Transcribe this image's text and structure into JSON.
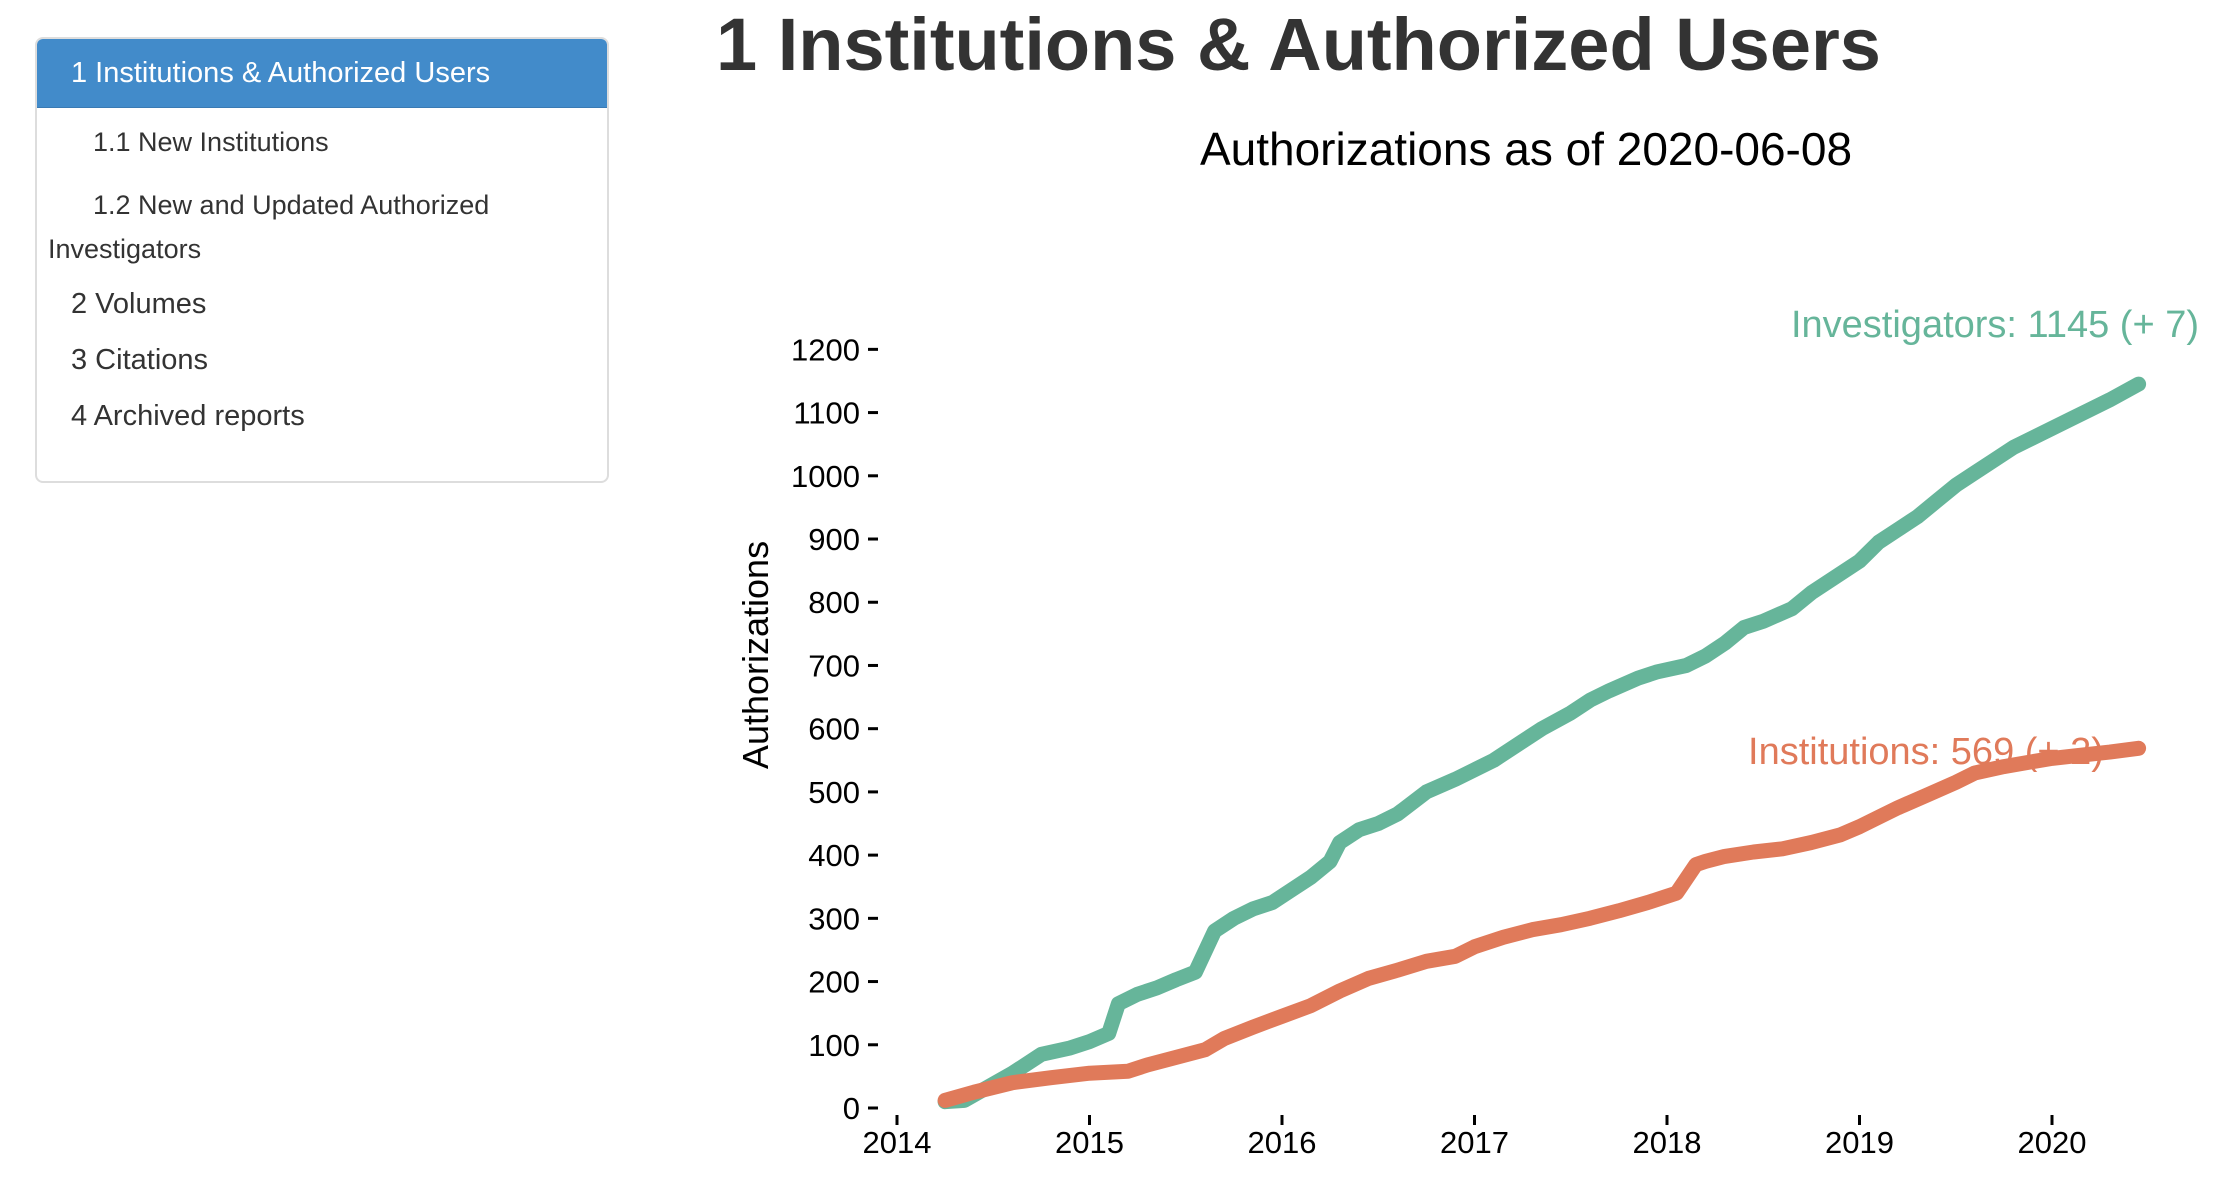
{
  "toc": {
    "items": [
      {
        "label": "1 Institutions & Authorized Users",
        "active": true
      },
      {
        "label": "1.1 New Institutions"
      },
      {
        "label": "1.2 New and Updated Authorized Investigators"
      },
      {
        "label": "2 Volumes"
      },
      {
        "label": "3 Citations"
      },
      {
        "label": "4 Archived reports"
      }
    ]
  },
  "page": {
    "title": "1 Institutions & Authorized Users"
  },
  "chart_data": {
    "type": "line",
    "title": "Authorizations as of  2020-06-08",
    "xlabel": "",
    "ylabel": "Authorizations",
    "xlim": [
      2014,
      2020.6
    ],
    "ylim": [
      0,
      1200
    ],
    "xticks": [
      2014,
      2015,
      2016,
      2017,
      2018,
      2019,
      2020
    ],
    "yticks": [
      0,
      100,
      200,
      300,
      400,
      500,
      600,
      700,
      800,
      900,
      1000,
      1100,
      1200
    ],
    "grid": false,
    "series": [
      {
        "name": "Investigators",
        "label": "Investigators: 1145 (+ 7)",
        "color": "#66b59a",
        "x": [
          2014.25,
          2014.35,
          2014.5,
          2014.6,
          2014.75,
          2014.9,
          2015.0,
          2015.1,
          2015.15,
          2015.25,
          2015.35,
          2015.45,
          2015.55,
          2015.65,
          2015.75,
          2015.85,
          2015.95,
          2016.05,
          2016.15,
          2016.25,
          2016.3,
          2016.4,
          2016.5,
          2016.6,
          2016.75,
          2016.9,
          2017.0,
          2017.1,
          2017.25,
          2017.35,
          2017.5,
          2017.6,
          2017.7,
          2017.85,
          2017.95,
          2018.1,
          2018.2,
          2018.3,
          2018.4,
          2018.5,
          2018.65,
          2018.75,
          2018.85,
          2019.0,
          2019.1,
          2019.2,
          2019.3,
          2019.4,
          2019.5,
          2019.6,
          2019.7,
          2019.8,
          2019.9,
          2020.0,
          2020.1,
          2020.2,
          2020.3,
          2020.45
        ],
        "values": [
          10,
          12,
          38,
          55,
          85,
          95,
          105,
          118,
          165,
          180,
          190,
          203,
          215,
          280,
          300,
          315,
          325,
          345,
          365,
          390,
          420,
          440,
          450,
          465,
          500,
          520,
          535,
          550,
          580,
          600,
          625,
          645,
          660,
          680,
          690,
          700,
          715,
          735,
          760,
          770,
          790,
          815,
          835,
          865,
          895,
          915,
          935,
          960,
          985,
          1005,
          1025,
          1045,
          1060,
          1075,
          1090,
          1105,
          1120,
          1145
        ]
      },
      {
        "name": "Institutions",
        "label": "Institutions: 569 (+ 2)",
        "color": "#e07a5a",
        "x": [
          2014.25,
          2014.4,
          2014.6,
          2014.8,
          2015.0,
          2015.2,
          2015.3,
          2015.45,
          2015.6,
          2015.7,
          2015.85,
          2016.0,
          2016.15,
          2016.3,
          2016.45,
          2016.6,
          2016.75,
          2016.9,
          2017.0,
          2017.15,
          2017.3,
          2017.45,
          2017.6,
          2017.75,
          2017.9,
          2018.05,
          2018.15,
          2018.2,
          2018.3,
          2018.45,
          2018.6,
          2018.75,
          2018.9,
          2019.0,
          2019.1,
          2019.2,
          2019.35,
          2019.5,
          2019.6,
          2019.75,
          2019.9,
          2020.0,
          2020.15,
          2020.3,
          2020.45
        ],
        "values": [
          12,
          25,
          40,
          48,
          55,
          58,
          68,
          80,
          92,
          110,
          128,
          145,
          162,
          185,
          205,
          218,
          232,
          240,
          255,
          270,
          282,
          290,
          300,
          312,
          325,
          340,
          385,
          390,
          398,
          405,
          410,
          420,
          432,
          445,
          460,
          475,
          495,
          515,
          530,
          540,
          548,
          553,
          558,
          563,
          569
        ]
      }
    ]
  }
}
